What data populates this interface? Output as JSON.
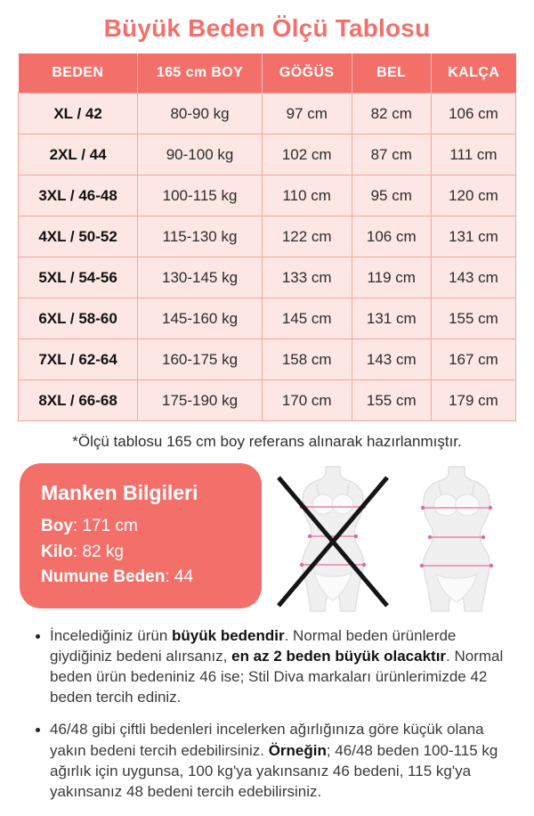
{
  "page": {
    "title": "Büyük Beden Ölçü Tablosu",
    "footnote": "*Ölçü tablosu 165 cm boy referans alınarak hazırlanmıştır."
  },
  "colors": {
    "coral_accent": "#F3706A",
    "row_pink": "#FCE7E5",
    "row_border_pink": "#F4A6A0",
    "measure_line_pink": "#E883AF",
    "cross_black": "#151515"
  },
  "chart_data": {
    "type": "table",
    "columns": [
      "BEDEN",
      "165 cm BOY",
      "GÖĞÜS",
      "BEL",
      "KALÇA"
    ],
    "rows": [
      [
        "XL / 42",
        "80-90 kg",
        "97 cm",
        "82 cm",
        "106 cm"
      ],
      [
        "2XL / 44",
        "90-100 kg",
        "102 cm",
        "87 cm",
        "111 cm"
      ],
      [
        "3XL / 46-48",
        "100-115 kg",
        "110 cm",
        "95 cm",
        "120 cm"
      ],
      [
        "4XL / 50-52",
        "115-130 kg",
        "122 cm",
        "106 cm",
        "131 cm"
      ],
      [
        "5XL / 54-56",
        "130-145 kg",
        "133 cm",
        "119 cm",
        "143 cm"
      ],
      [
        "6XL / 58-60",
        "145-160 kg",
        "145 cm",
        "131 cm",
        "155 cm"
      ],
      [
        "7XL / 62-64",
        "160-175 kg",
        "158 cm",
        "143 cm",
        "167 cm"
      ],
      [
        "8XL / 66-68",
        "175-190 kg",
        "170 cm",
        "155 cm",
        "179 cm"
      ]
    ]
  },
  "model_info": {
    "title": "Manken Bilgileri",
    "fields": [
      {
        "label": "Boy",
        "value": "171 cm"
      },
      {
        "label": "Kilo",
        "value": "82 kg"
      },
      {
        "label": "Numune Beden",
        "value": "44"
      }
    ]
  },
  "icons": {
    "left_figure": "crossed-out-straight-size-figure-icon",
    "right_figure": "plus-size-figure-icon"
  },
  "notes": [
    {
      "segments": [
        {
          "bold": false,
          "text": "İncelediğiniz ürün "
        },
        {
          "bold": true,
          "text": "büyük bedendir"
        },
        {
          "bold": false,
          "text": ". Normal beden ürünlerde giydiğiniz bedeni alırsanız, "
        },
        {
          "bold": true,
          "text": "en az 2 beden büyük olacaktır"
        },
        {
          "bold": false,
          "text": ". Normal beden ürün bedeniniz 46 ise; Stil Diva markaları ürünlerimizde 42 beden tercih ediniz."
        }
      ]
    },
    {
      "segments": [
        {
          "bold": false,
          "text": "46/48 gibi çiftli bedenleri incelerken ağırlığınıza göre küçük olana yakın bedeni tercih edebilirsiniz. "
        },
        {
          "bold": true,
          "text": "Örneğin"
        },
        {
          "bold": false,
          "text": "; 46/48 beden 100-115 kg ağırlık için uygunsa, 100 kg'ya yakınsanız 46 bedeni, 115 kg'ya yakınsanız 48 bedeni tercih edebilirsiniz."
        }
      ]
    }
  ]
}
